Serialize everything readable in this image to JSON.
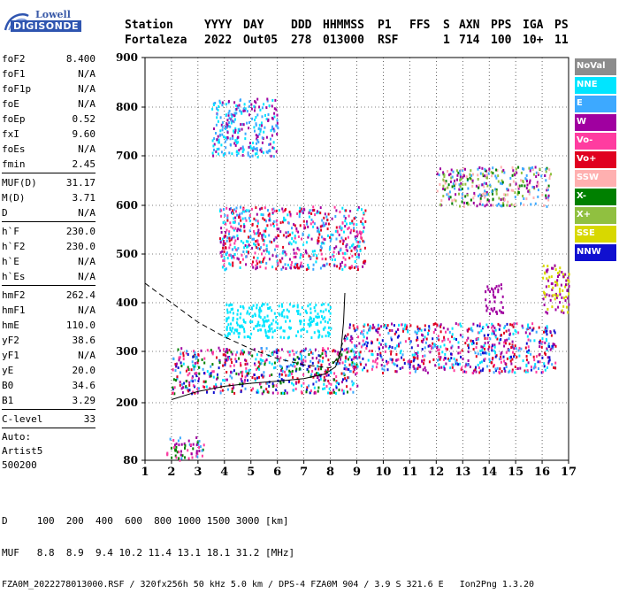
{
  "logo": {
    "line1": "Lowell",
    "line2": "DIGISONDE"
  },
  "header": {
    "labels": [
      "Station",
      "YYYY",
      "DAY",
      "DDD",
      "HHMMSS",
      "P1",
      "FFS",
      "S",
      "AXN",
      "PPS",
      "IGA",
      "PS"
    ],
    "values": [
      "Fortaleza",
      "2022",
      "Out05",
      "278",
      "013000",
      "RSF",
      "",
      "1",
      "714",
      "100",
      "10+",
      "11"
    ]
  },
  "params": {
    "group1": [
      {
        "k": "foF2",
        "v": "8.400"
      },
      {
        "k": "foF1",
        "v": "N/A"
      },
      {
        "k": "foF1p",
        "v": "N/A"
      },
      {
        "k": "foE",
        "v": "N/A"
      },
      {
        "k": "foEp",
        "v": "0.52"
      },
      {
        "k": "fxI",
        "v": "9.60"
      },
      {
        "k": "foEs",
        "v": "N/A"
      },
      {
        "k": "fmin",
        "v": "2.45"
      }
    ],
    "group2": [
      {
        "k": "MUF(D)",
        "v": "31.17"
      },
      {
        "k": "M(D)",
        "v": "3.71"
      },
      {
        "k": "D",
        "v": "N/A"
      }
    ],
    "group3": [
      {
        "k": "h`F",
        "v": "230.0"
      },
      {
        "k": "h`F2",
        "v": "230.0"
      },
      {
        "k": "h`E",
        "v": "N/A"
      },
      {
        "k": "h`Es",
        "v": "N/A"
      }
    ],
    "group4": [
      {
        "k": "hmF2",
        "v": "262.4"
      },
      {
        "k": "hmF1",
        "v": "N/A"
      },
      {
        "k": "hmE",
        "v": "110.0"
      },
      {
        "k": "yF2",
        "v": "38.6"
      },
      {
        "k": "yF1",
        "v": "N/A"
      },
      {
        "k": "yE",
        "v": "20.0"
      },
      {
        "k": "B0",
        "v": "34.6"
      },
      {
        "k": "B1",
        "v": "3.29"
      }
    ],
    "group5": [
      {
        "k": "C-level",
        "v": "33"
      }
    ],
    "auto": [
      "Auto:",
      "Artist5",
      "500200"
    ]
  },
  "legend": [
    {
      "label": "NoVal",
      "color": "#8c8c8c"
    },
    {
      "label": "NNE",
      "color": "#00e5ff"
    },
    {
      "label": "E",
      "color": "#3da9ff"
    },
    {
      "label": "W",
      "color": "#a000a0"
    },
    {
      "label": "Vo-",
      "color": "#ff3ca0"
    },
    {
      "label": "Vo+",
      "color": "#e00020"
    },
    {
      "label": "SSW",
      "color": "#ffb0b0"
    },
    {
      "label": "X-",
      "color": "#008000"
    },
    {
      "label": "X+",
      "color": "#90c040"
    },
    {
      "label": "SSE",
      "color": "#d8d800"
    },
    {
      "label": "NNW",
      "color": "#1010d0"
    }
  ],
  "footer": {
    "line1": "D     100  200  400  600  800 1000 1500 3000 [km]",
    "line2": "MUF   8.8  8.9  9.4 10.2 11.4 13.1 18.1 31.2 [MHz]",
    "line3": "FZA0M_2022278013000.RSF / 320fx256h 50 kHz 5.0 km / DPS-4 FZA0M 904 / 3.9 S 321.6 E   Ion2Png 1.3.20"
  },
  "chart_data": {
    "type": "scatter",
    "xlabel": "",
    "ylabel": "",
    "xlim": [
      1,
      17
    ],
    "ylim": [
      80,
      900
    ],
    "xticks": [
      1,
      2,
      3,
      4,
      5,
      6,
      7,
      8,
      9,
      10,
      11,
      12,
      13,
      14,
      15,
      16,
      17
    ],
    "yticks": [
      80,
      200,
      300,
      400,
      500,
      600,
      700,
      800,
      900
    ],
    "traces": {
      "solid": [
        [
          2,
          206
        ],
        [
          3,
          222
        ],
        [
          4,
          232
        ],
        [
          5,
          238
        ],
        [
          6,
          242
        ],
        [
          7,
          247
        ],
        [
          7.8,
          256
        ],
        [
          8.2,
          270
        ],
        [
          8.4,
          300
        ],
        [
          8.5,
          360
        ],
        [
          8.55,
          420
        ]
      ],
      "dashed": [
        [
          1,
          440
        ],
        [
          2,
          400
        ],
        [
          3,
          360
        ],
        [
          4,
          330
        ],
        [
          5,
          305
        ],
        [
          6,
          286
        ],
        [
          7,
          274
        ],
        [
          8,
          268
        ],
        [
          8.3,
          290
        ],
        [
          8.6,
          340
        ]
      ]
    },
    "echo_regions": [
      {
        "x": [
          1.8,
          3.2
        ],
        "y": [
          82,
          130
        ],
        "colors": [
          "#3da9ff",
          "#a000a0",
          "#ff3ca0",
          "#008000"
        ]
      },
      {
        "x": [
          2.0,
          9.0
        ],
        "y": [
          220,
          310
        ],
        "colors": [
          "#e00020",
          "#ff3ca0",
          "#3da9ff",
          "#008000",
          "#00e5ff",
          "#a000a0",
          "#1010d0"
        ]
      },
      {
        "x": [
          8.5,
          16.5
        ],
        "y": [
          260,
          360
        ],
        "colors": [
          "#e00020",
          "#ff3ca0",
          "#3da9ff",
          "#00e5ff",
          "#1010d0",
          "#a000a0"
        ]
      },
      {
        "x": [
          3.8,
          9.3
        ],
        "y": [
          470,
          600
        ],
        "colors": [
          "#ff3ca0",
          "#a000a0",
          "#3da9ff",
          "#00e5ff",
          "#e00020"
        ]
      },
      {
        "x": [
          3.5,
          6
        ],
        "y": [
          700,
          820
        ],
        "colors": [
          "#3da9ff",
          "#00e5ff",
          "#a000a0"
        ]
      },
      {
        "x": [
          12,
          16.3
        ],
        "y": [
          600,
          680
        ],
        "colors": [
          "#008000",
          "#3da9ff",
          "#ffb0b0",
          "#a000a0",
          "#90c040"
        ]
      },
      {
        "x": [
          13.8,
          14.5
        ],
        "y": [
          380,
          440
        ],
        "colors": [
          "#a000a0"
        ]
      },
      {
        "x": [
          16,
          17
        ],
        "y": [
          380,
          480
        ],
        "colors": [
          "#d8d800",
          "#a000a0"
        ]
      },
      {
        "x": [
          4,
          8
        ],
        "y": [
          330,
          400
        ],
        "colors": [
          "#00e5ff"
        ]
      }
    ]
  }
}
